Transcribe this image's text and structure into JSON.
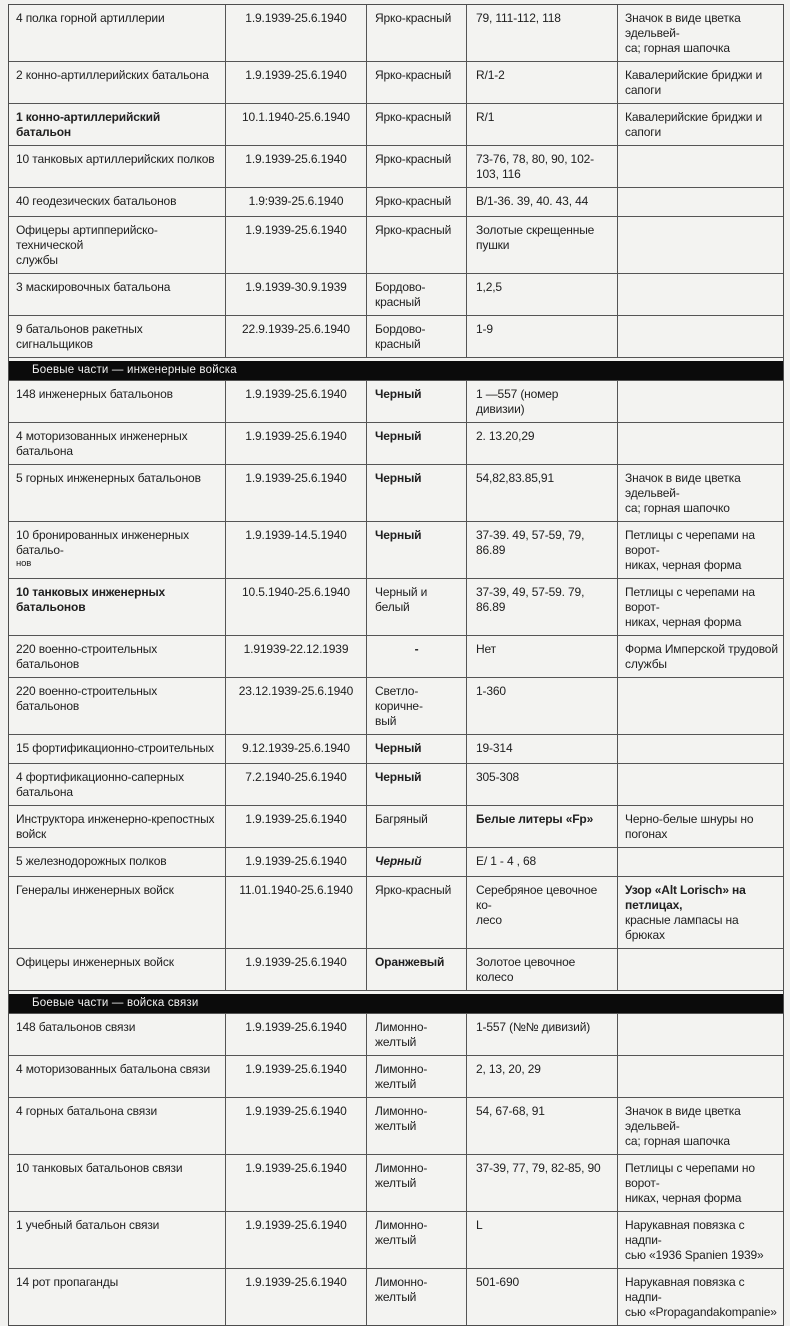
{
  "page": {
    "background": "#f1f1ef",
    "border_color": "#4d4d4d",
    "section_bar_bg": "#0b0b0b",
    "section_bar_text_color": "#f2f2f2"
  },
  "table": {
    "column_keys": [
      "unit",
      "dates",
      "color",
      "numbers",
      "notes"
    ],
    "sections": [
      {
        "header": null,
        "rows": [
          {
            "unit": "4 полка горной артиллерии",
            "dates": "1.9.1939-25.6.1940",
            "color": "Ярко-красный",
            "numbers": "79, 111-112, 118",
            "notes": "Значок в виде цветка эдельвей-\nса; горная шапочка"
          },
          {
            "unit": "2 конно-артиллерийских батальона",
            "dates": "1.9.1939-25.6.1940",
            "color": "Ярко-красный",
            "numbers": "R/1-2",
            "notes": "Кавалерийские бриджи и сапоги"
          },
          {
            "unit": "1 конно-артиллерийский батальон",
            "dates": "10.1.1940-25.6.1940",
            "color": "Ярко-красный",
            "numbers": "R/1",
            "notes": "Кавалерийские бриджи и сапоги",
            "styles": {
              "unit": "bold"
            }
          },
          {
            "unit": "10 танковых артиллерийских полков",
            "dates": "1.9.1939-25.6.1940",
            "color": "Ярко-красный",
            "numbers": "73-76, 78, 80, 90, 102-\n103, 116",
            "notes": ""
          },
          {
            "unit": "40 геодезических батальонов",
            "dates": "1.9:939-25.6.1940",
            "color": "Ярко-красный",
            "numbers": "B/1-36. 39, 40. 43, 44",
            "notes": ""
          },
          {
            "unit": "Офицеры артипперийско-технической\nслужбы",
            "dates": "1.9.1939-25.6.1940",
            "color": "Ярко-красный",
            "numbers": "Золотые скрещенные пушки",
            "notes": ""
          },
          {
            "unit": "3 маскировочных батальона",
            "dates": "1.9.1939-30.9.1939",
            "color": "Бордово-красный",
            "numbers": "1,2,5",
            "notes": ""
          },
          {
            "unit": "9 батальонов ракетных сигнальщиков",
            "dates": "22.9.1939-25.6.1940",
            "color": "Бордово-красный",
            "numbers": "1-9",
            "notes": ""
          }
        ]
      },
      {
        "header": "Боевые части — инженерные войска",
        "rows": [
          {
            "unit": "148 инженерных батальонов",
            "dates": "1.9.1939-25.6.1940",
            "color": "Черный",
            "numbers": "1 —557 (номер дивизии)",
            "notes": "",
            "styles": {
              "color": "bold"
            }
          },
          {
            "unit": "4 моторизованных инженерных батальона",
            "dates": "1.9.1939-25.6.1940",
            "color": "Черный",
            "numbers": "2. 13.20,29",
            "notes": "",
            "styles": {
              "color": "bold"
            }
          },
          {
            "unit": "5 горных инженерных батальонов",
            "dates": "1.9.1939-25.6.1940",
            "color": "Черный",
            "numbers": "54,82,83.85,91",
            "notes": "Значок в виде цветка эдельвей-\nса; горная шапочко",
            "styles": {
              "color": "bold"
            }
          },
          {
            "unit": "10 бронированных инженерных батальо-",
            "unit2": "нов",
            "dates": "1.9.1939-14.5.1940",
            "color": "Черный",
            "numbers": "37-39. 49, 57-59, 79,\n86.89",
            "notes": "Петлицы с черепами на ворот-\nниках, черная форма",
            "styles": {
              "color": "bold"
            }
          },
          {
            "unit": "10 танковых инженерных батальонов",
            "dates": "10.5.1940-25.6.1940",
            "color": "Черный и белый",
            "numbers": "37-39, 49, 57-59. 79,\n86.89",
            "notes": "Петлицы с черепами на ворот-\nниках, черная форма",
            "styles": {
              "unit": "bold"
            }
          },
          {
            "unit": "220 военно-строительных батальонов",
            "dates": "1.91939-22.12.1939",
            "color": "-",
            "numbers": "Нет",
            "notes": "Форма Имперской трудовой\nслужбы",
            "styles": {
              "color": "bold center"
            }
          },
          {
            "unit": "220 военно-строительных батальонов",
            "dates": "23.12.1939-25.6.1940",
            "color": "Светло-коричне-\nвый",
            "numbers": "1-360",
            "notes": ""
          },
          {
            "unit": "15 фортификационно-строительных",
            "dates": "9.12.1939-25.6.1940",
            "color": "Черный",
            "numbers": "19-314",
            "notes": "",
            "styles": {
              "color": "bold"
            }
          },
          {
            "unit": "4 фортификационно-саперных батальона",
            "dates": "7.2.1940-25.6.1940",
            "color": "Черный",
            "numbers": "305-308",
            "notes": "",
            "styles": {
              "color": "bold"
            }
          },
          {
            "unit": "Инструктора инженерно-крепостных\nвойск",
            "dates": "1.9.1939-25.6.1940",
            "color": "Багряный",
            "numbers": "Белые литеры «Fp»",
            "notes": "Черно-белые шнуры но погонах",
            "styles": {
              "numbers": "bold"
            }
          },
          {
            "unit": "5 железнодорожных полков",
            "dates": "1.9.1939-25.6.1940",
            "color": "Черный",
            "numbers": "E/ 1 - 4 , 68",
            "notes": "",
            "styles": {
              "color": "bold italic"
            }
          },
          {
            "unit": "Генералы инженерных войск",
            "dates": "11.01.1940-25.6.1940",
            "color": "Ярко-красный",
            "numbers": "Серебряное цевочное ко-\nлесо",
            "notes": "Узор «Alt Lorisch» на петлицах,",
            "notes2": "красные лампасы на брюках",
            "styles": {
              "notes": "boldfirst"
            }
          },
          {
            "unit": "Офицеры инженерных войск",
            "dates": "1.9.1939-25.6.1940",
            "color": "Оранжевый",
            "numbers": "Золотое цевочное колесо",
            "notes": "",
            "styles": {
              "color": "bold"
            }
          }
        ]
      },
      {
        "header": "Боевые части — войска связи",
        "rows": [
          {
            "unit": "148 батальонов связи",
            "dates": "1.9.1939-25.6.1940",
            "color": "Лимонно-желтый",
            "numbers": "1-557 (№№ дивизий)",
            "notes": ""
          },
          {
            "unit": "4 моторизованных батальона связи",
            "dates": "1.9.1939-25.6.1940",
            "color": "Лимонно-желтый",
            "numbers": "2, 13, 20, 29",
            "notes": ""
          },
          {
            "unit": "4 горных батальона связи",
            "dates": "1.9.1939-25.6.1940",
            "color": "Лимонно-желтый",
            "numbers": "54, 67-68, 91",
            "notes": "Значок в виде цветка эдельвей-\nса; горная шапочка"
          },
          {
            "unit": "10 танковых батальонов связи",
            "dates": "1.9.1939-25.6.1940",
            "color": "Лимонно-желтый",
            "numbers": "37-39, 77, 79, 82-85, 90",
            "notes": "Петлицы с черепами но ворот-\nниках, черная форма"
          },
          {
            "unit": "1 учебный батальон связи",
            "dates": "1.9.1939-25.6.1940",
            "color": "Лимонно-желтый",
            "numbers": "L",
            "notes": "Нарукавная повязка с надпи-\nсью «1936 Spanien 1939»"
          },
          {
            "unit": "14 рот пропаганды",
            "dates": "1.9.1939-25.6.1940",
            "color": "Лимонно-желтый",
            "numbers": "501-690",
            "notes": "Нарукавная повязка с надпи-\nсью «Propagandakompanie»"
          }
        ]
      }
    ]
  }
}
